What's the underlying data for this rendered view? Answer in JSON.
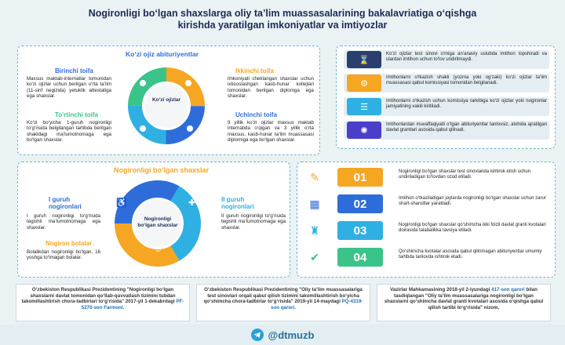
{
  "title": "Nogironligi bo‘lgan shaxslarga oliy ta’lim muassasalarining bakalavriatiga o‘qishga kirishda yaratilgan imkoniyatlar va imtiyozlar",
  "panel1": {
    "heading": "Ko‘zi ojiz abituriyentlar",
    "center": "Ko‘zi ojizlar",
    "toifa1": {
      "title": "Birinchi toifa",
      "text": "Maxsus maktab-internatlar tomonidan ko‘zi ojizlar uchun berilgan o‘rta ta’lim (11-sinf negizida) yetuklik attestatiga ega shaxslar."
    },
    "toifa2": {
      "title": "Ikkinchi toifa",
      "text": "Imkoniyati cheklangan shaxslar uchun ixtisoslashgan kasb-hunar kollejlari tomonidan berilgan diplomga ega shaxslar."
    },
    "toifa3": {
      "title": "Uchinchi toifa",
      "text": "9 yillik ko‘zi ojizlar maxsus maktab internatida o‘qigan va 3 yillik o‘rta maxsus, kasb-hunar ta’lim muassasasi diplomiga ega bo‘lgan shaxslar."
    },
    "toifa4": {
      "title": "To‘rtinchi toifa",
      "text": "Ko‘zi bo‘yicha 1-guruh nogironligi to‘g‘risida belgilangan tartibda berilgan shakldagi ma’lumotnomaga ega bo‘lgan shaxslar."
    }
  },
  "panel2": {
    "items": [
      {
        "text": "Ko‘zi ojizlar test sinovi o‘miga an’anaviy uslubda imtihon topshiradi va ulardan imtihon uchun to‘lov undirilmaydi."
      },
      {
        "text": "Imtihonlarni o‘tkazish shakli (yozma yoki og‘zaki) ko‘zi ojizlar ta’lim muassasasi qabul komissiyasi tomonidan belgilanadi."
      },
      {
        "text": "Imtihonlarni o‘tkazish uchun komissiya tarkibiga ko‘zi ojizlar yoki nogironlar jamiyatining vakili kiritiladi."
      },
      {
        "text": "Imtihonlardan muvaffaqiyatli o‘tgan abituriyentlar tanlovsiz, alohida ajratilgan davlat grantlari asosida qabul qilinadi."
      }
    ]
  },
  "panel3": {
    "heading": "Nogironligi bo‘lgan shaxslar",
    "center": "Nogironligi bo‘lgan shaxslar",
    "g1": {
      "title": "I guruh nogironlari",
      "text": "I guruh nogironligi to‘g‘risida tegishli ma’lumotnomaga ega shaxslar."
    },
    "g2": {
      "title": "II guruh nogironlari",
      "text": "II guruh nogironligi to‘g‘risida tegishli ma’lumotnomaga ega shaxslar."
    },
    "g3": {
      "title": "Nogiron bolalar",
      "text": "Bolalikdan nogironligi bo‘lgan, 16 yoshga to‘lmagan bolalar."
    }
  },
  "panel4": {
    "items": [
      {
        "num": "01",
        "text": "Nogironligi bo‘lgan shaxslar test sinovlarida ishtirok etish uchun undiriladigan to‘lovdan ozod etiladi."
      },
      {
        "num": "02",
        "text": "Imtihon o‘tkaziladigan joylarda nogironligi bo‘lgan shaxslar uchun zarur shart-sharoitlar yaratiladi."
      },
      {
        "num": "03",
        "text": "Nogironligi bo‘lgan shaxslar qo‘shimcha ikki foizli davlat granti kvotalari doirasida talabalikka tavsiya etiladi."
      },
      {
        "num": "04",
        "text": "Qo‘shimcha kvotalar asosida qabul qilinmagan abituriyentlar umumiy tartibda tanlovda ishtirok etadi."
      }
    ]
  },
  "decrees": [
    {
      "text": "O‘zbekiston Respublikasi Prezidentining \"Nogironligi bo‘lgan shaxslarni davlat tomonidan qo‘llab-quvvatlash tizimini tubdan takomillashtirish chora-tadbirlari to‘g‘risida\" 2017-yil 1-dekabrdagi",
      "link": "PF-5270-son Farmoni."
    },
    {
      "text": "O‘zbekiston Respublikasi Prezidentining \"Oliy ta’lim muassasalariga test sinovlari orqali qabul qilish tizimini takomillashtirish bo‘yicha qo‘shimcha chora-tadbirlar to‘g‘risida\" 2019-yil 14-maydagi",
      "link": "PQ-4319-son qarori."
    },
    {
      "text": "Vazirlar Mahkamasining 2018-yil 2-iyundagi",
      "link": "417-son qarori",
      "text2": "bilan tasdiqlangan \"Oliy ta’lim muassasalariga nogironligi bo‘lgan shaxslarni qo‘shimcha davlat granti kvotalari asosida o‘qishga qabul qilish tartibi to‘g‘risida\" nizom."
    }
  ],
  "footer": {
    "handle": "@dtmuzb",
    "icon": "telegram-icon"
  },
  "colors": {
    "blue": "#2e6dd9",
    "orange": "#f5a623",
    "cyan": "#2fb0e3",
    "green": "#3bc48a",
    "purple": "#4b3ec9",
    "dark": "#1c2b55"
  }
}
